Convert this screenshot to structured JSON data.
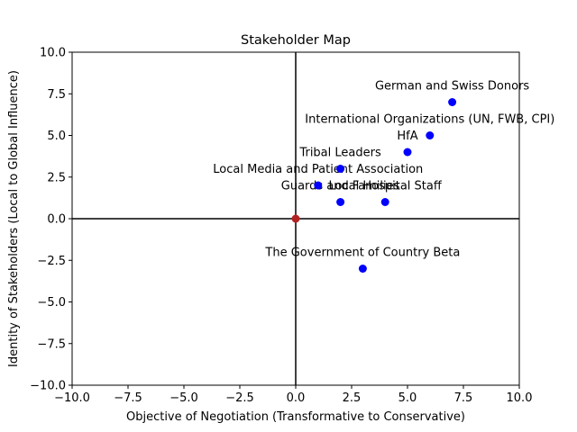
{
  "chart_data": {
    "type": "scatter",
    "title": "Stakeholder Map",
    "xlabel": "Objective of Negotiation (Transformative to Conservative)",
    "ylabel": "Identity of Stakeholders (Local to Global Influence)",
    "xlim": [
      -10,
      10
    ],
    "ylim": [
      -10,
      10
    ],
    "xticks": [
      -10,
      -7.5,
      -5,
      -2.5,
      0,
      2.5,
      5,
      7.5,
      10
    ],
    "yticks": [
      -10,
      -7.5,
      -5,
      -2.5,
      0,
      2.5,
      5,
      7.5,
      10
    ],
    "xtick_labels": [
      "−10.0",
      "−7.5",
      "−5.0",
      "−2.5",
      "0.0",
      "2.5",
      "5.0",
      "7.5",
      "10.0"
    ],
    "ytick_labels": [
      "−10.0",
      "−7.5",
      "−5.0",
      "−2.5",
      "0.0",
      "2.5",
      "5.0",
      "7.5",
      "10.0"
    ],
    "grid": false,
    "reference_lines": {
      "x": 0,
      "y": 0,
      "color": "#000000"
    },
    "point_color": "#0000ff",
    "origin_color": "#b22222",
    "points": [
      {
        "label": "German and Swiss Donors",
        "x": 7,
        "y": 7
      },
      {
        "label": "International Organizations (UN, FWB, CPI)",
        "x": 6,
        "y": 5
      },
      {
        "label": "HfA",
        "x": 5,
        "y": 4
      },
      {
        "label": "Tribal Leaders",
        "x": 2,
        "y": 3
      },
      {
        "label": "Local Media and Patient Association",
        "x": 1,
        "y": 2
      },
      {
        "label": "Guards and Families",
        "x": 2,
        "y": 1
      },
      {
        "label": "Local Hospital Staff",
        "x": 4,
        "y": 1
      },
      {
        "label": "The Government of Country Beta",
        "x": 3,
        "y": -3
      }
    ],
    "origin_point": {
      "x": 0,
      "y": 0
    }
  }
}
